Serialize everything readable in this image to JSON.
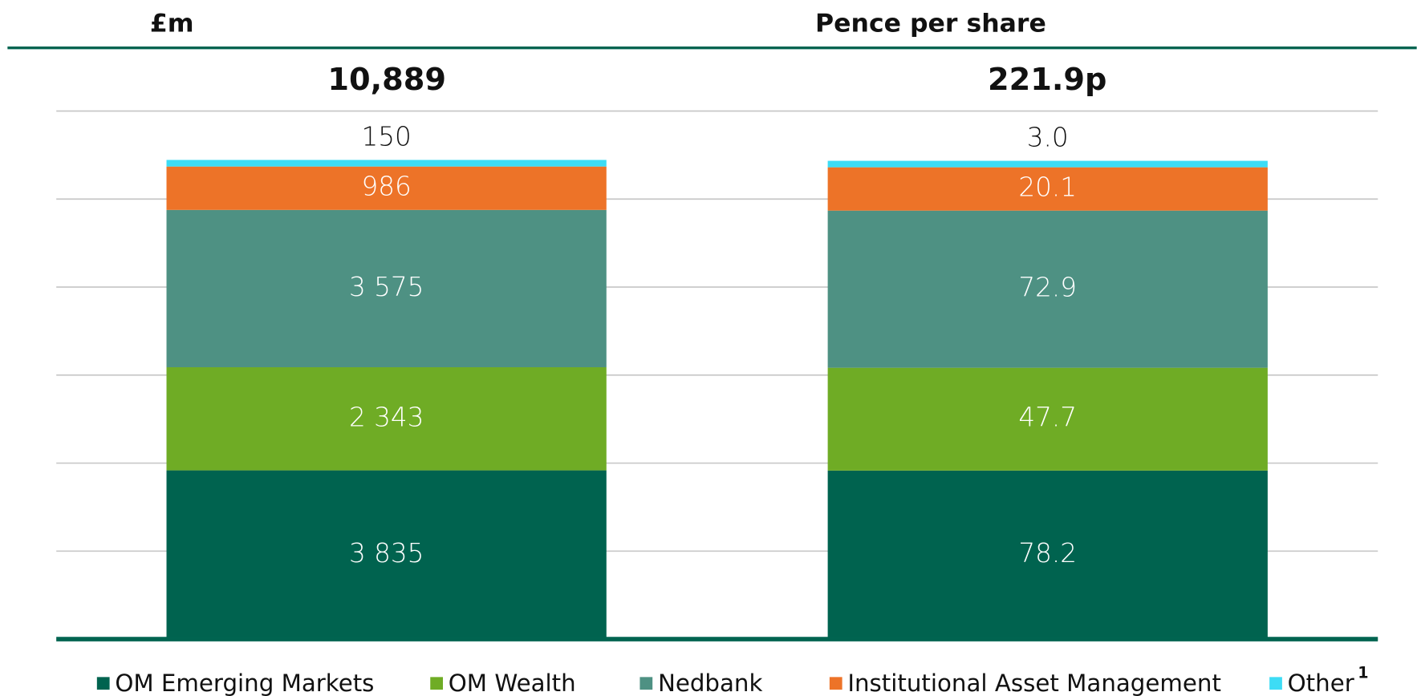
{
  "chart_data": [
    {
      "type": "bar",
      "stacked": true,
      "title": "£m",
      "total_label": "10,889",
      "series": [
        {
          "values": [
            3835
          ],
          "value_labels": [
            "3 835"
          ]
        },
        {
          "values": [
            2343
          ],
          "value_labels": [
            "2 343"
          ]
        },
        {
          "values": [
            3575
          ],
          "value_labels": [
            "3 575"
          ]
        },
        {
          "values": [
            986
          ]
        },
        {
          "values": [
            150
          ]
        }
      ],
      "ylim": [
        0,
        12000
      ],
      "yticks": [
        0,
        2000,
        4000,
        6000,
        8000,
        10000,
        12000
      ],
      "grid": true
    },
    {
      "type": "bar",
      "stacked": true,
      "title": "Pence per share",
      "total_label": "221.9p",
      "series": [
        {
          "values": [
            78.2
          ]
        },
        {
          "values": [
            47.7
          ]
        },
        {
          "values": [
            72.9
          ]
        },
        {
          "values": [
            20.1
          ]
        },
        {
          "values": [
            3.0
          ],
          "value_labels": [
            "3.0"
          ]
        }
      ],
      "ylim": [
        0,
        245
      ]
    }
  ],
  "legend": [
    {
      "name": "OM Emerging Markets",
      "color": "#00634f"
    },
    {
      "name": "OM Wealth",
      "color": "#6fac25"
    },
    {
      "name": "Nedbank",
      "color": "#4e9183"
    },
    {
      "name": "Institutional Asset Management",
      "color": "#ed7328"
    },
    {
      "name": "Other",
      "color": "#3ddcf5",
      "footnote": "1"
    }
  ]
}
